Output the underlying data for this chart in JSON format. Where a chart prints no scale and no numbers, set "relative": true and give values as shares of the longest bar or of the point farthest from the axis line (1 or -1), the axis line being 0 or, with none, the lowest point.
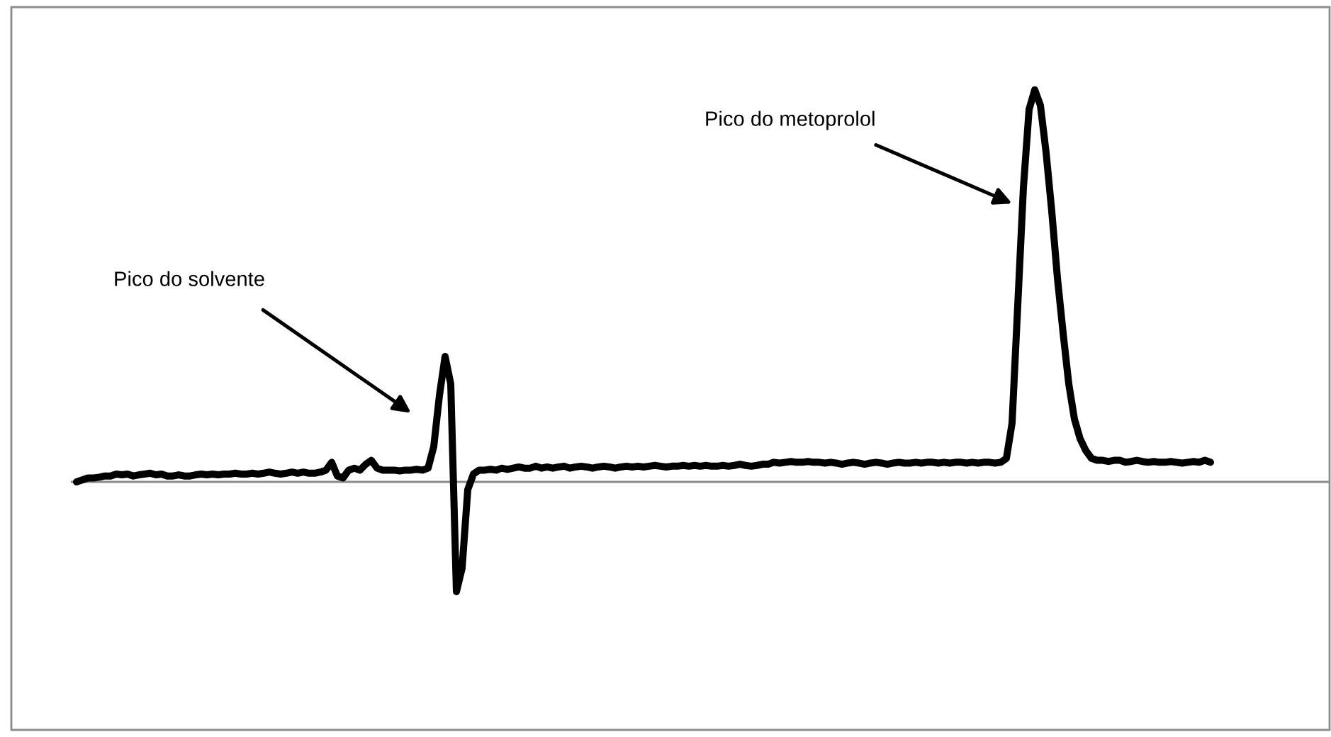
{
  "chart_data": {
    "type": "line",
    "relative": true,
    "marker": "none",
    "line_style": "solid",
    "categories": [
      null,
      null,
      null,
      null,
      null,
      null,
      null,
      null,
      null,
      null,
      null,
      null,
      null,
      null,
      null,
      null,
      null,
      null,
      null,
      null,
      null,
      null,
      null,
      null,
      null,
      null,
      null,
      null,
      null,
      null,
      null,
      null,
      null,
      null,
      null,
      null,
      null,
      null,
      null,
      null,
      null,
      null,
      null,
      null,
      null,
      null,
      null,
      null,
      null,
      null,
      null,
      null,
      null,
      null,
      null,
      null,
      null,
      null,
      null,
      null,
      null,
      null,
      null,
      null,
      null,
      null,
      null,
      null,
      null,
      null,
      null,
      null,
      null,
      null,
      null,
      null,
      null,
      null,
      null,
      null,
      null,
      null,
      null,
      null,
      null,
      null,
      null,
      null,
      null,
      null,
      null,
      null,
      null,
      null,
      null,
      null,
      null,
      null,
      null,
      null,
      null,
      null,
      null,
      null,
      null,
      null,
      null,
      null,
      null,
      null,
      null,
      null,
      null,
      null,
      null,
      null,
      null,
      null,
      null,
      null,
      null,
      null,
      null,
      null,
      null,
      null,
      null,
      null,
      null,
      null,
      null,
      null,
      null,
      null,
      null,
      null,
      null,
      null,
      null,
      null,
      null,
      null,
      null,
      null,
      null,
      null,
      null,
      null,
      null,
      null,
      null,
      null,
      null,
      null,
      null,
      null,
      null,
      null,
      null,
      null,
      null,
      null,
      null,
      null,
      null,
      null,
      null,
      null,
      null,
      null,
      null,
      null,
      null,
      null,
      null,
      null,
      null,
      null,
      null,
      null,
      null,
      null,
      null,
      null,
      null,
      null,
      null,
      null,
      null,
      null,
      null,
      null,
      null,
      null,
      null,
      null,
      null,
      null,
      null,
      null,
      null
    ],
    "series": [
      {
        "color": "#000000",
        "values": [
          0.0,
          0.005,
          0.01,
          0.01,
          0.012,
          0.015,
          0.015,
          0.02,
          0.018,
          0.02,
          0.015,
          0.018,
          0.02,
          0.022,
          0.018,
          0.02,
          0.015,
          0.015,
          0.018,
          0.015,
          0.015,
          0.018,
          0.02,
          0.018,
          0.02,
          0.018,
          0.02,
          0.02,
          0.022,
          0.02,
          0.02,
          0.022,
          0.02,
          0.022,
          0.025,
          0.022,
          0.02,
          0.022,
          0.025,
          0.022,
          0.025,
          0.022,
          0.022,
          0.025,
          0.03,
          0.05,
          0.015,
          0.01,
          0.03,
          0.035,
          0.03,
          0.045,
          0.055,
          0.035,
          0.03,
          0.03,
          0.03,
          0.028,
          0.03,
          0.03,
          0.032,
          0.03,
          0.035,
          0.09,
          0.22,
          0.32,
          0.25,
          -0.28,
          -0.22,
          -0.02,
          0.02,
          0.03,
          0.03,
          0.032,
          0.03,
          0.035,
          0.032,
          0.035,
          0.038,
          0.035,
          0.035,
          0.04,
          0.035,
          0.038,
          0.035,
          0.038,
          0.04,
          0.035,
          0.038,
          0.04,
          0.038,
          0.035,
          0.038,
          0.04,
          0.038,
          0.035,
          0.038,
          0.04,
          0.038,
          0.04,
          0.038,
          0.04,
          0.042,
          0.04,
          0.038,
          0.04,
          0.04,
          0.042,
          0.04,
          0.042,
          0.04,
          0.042,
          0.04,
          0.04,
          0.042,
          0.04,
          0.042,
          0.045,
          0.042,
          0.04,
          0.042,
          0.045,
          0.045,
          0.05,
          0.048,
          0.05,
          0.052,
          0.05,
          0.05,
          0.052,
          0.05,
          0.05,
          0.048,
          0.05,
          0.048,
          0.045,
          0.048,
          0.05,
          0.048,
          0.045,
          0.048,
          0.05,
          0.048,
          0.045,
          0.048,
          0.05,
          0.048,
          0.048,
          0.05,
          0.048,
          0.05,
          0.05,
          0.048,
          0.05,
          0.048,
          0.05,
          0.05,
          0.048,
          0.05,
          0.048,
          0.05,
          0.05,
          0.048,
          0.05,
          0.06,
          0.15,
          0.45,
          0.75,
          0.95,
          1.0,
          0.96,
          0.84,
          0.69,
          0.52,
          0.38,
          0.25,
          0.16,
          0.11,
          0.08,
          0.06,
          0.055,
          0.055,
          0.052,
          0.055,
          0.055,
          0.05,
          0.052,
          0.055,
          0.052,
          0.05,
          0.052,
          0.05,
          0.05,
          0.052,
          0.05,
          0.048,
          0.05,
          0.052,
          0.05,
          0.055,
          0.05
        ]
      }
    ],
    "annotations": [
      "Pico do solvente",
      "Pico do metoprolol"
    ]
  }
}
